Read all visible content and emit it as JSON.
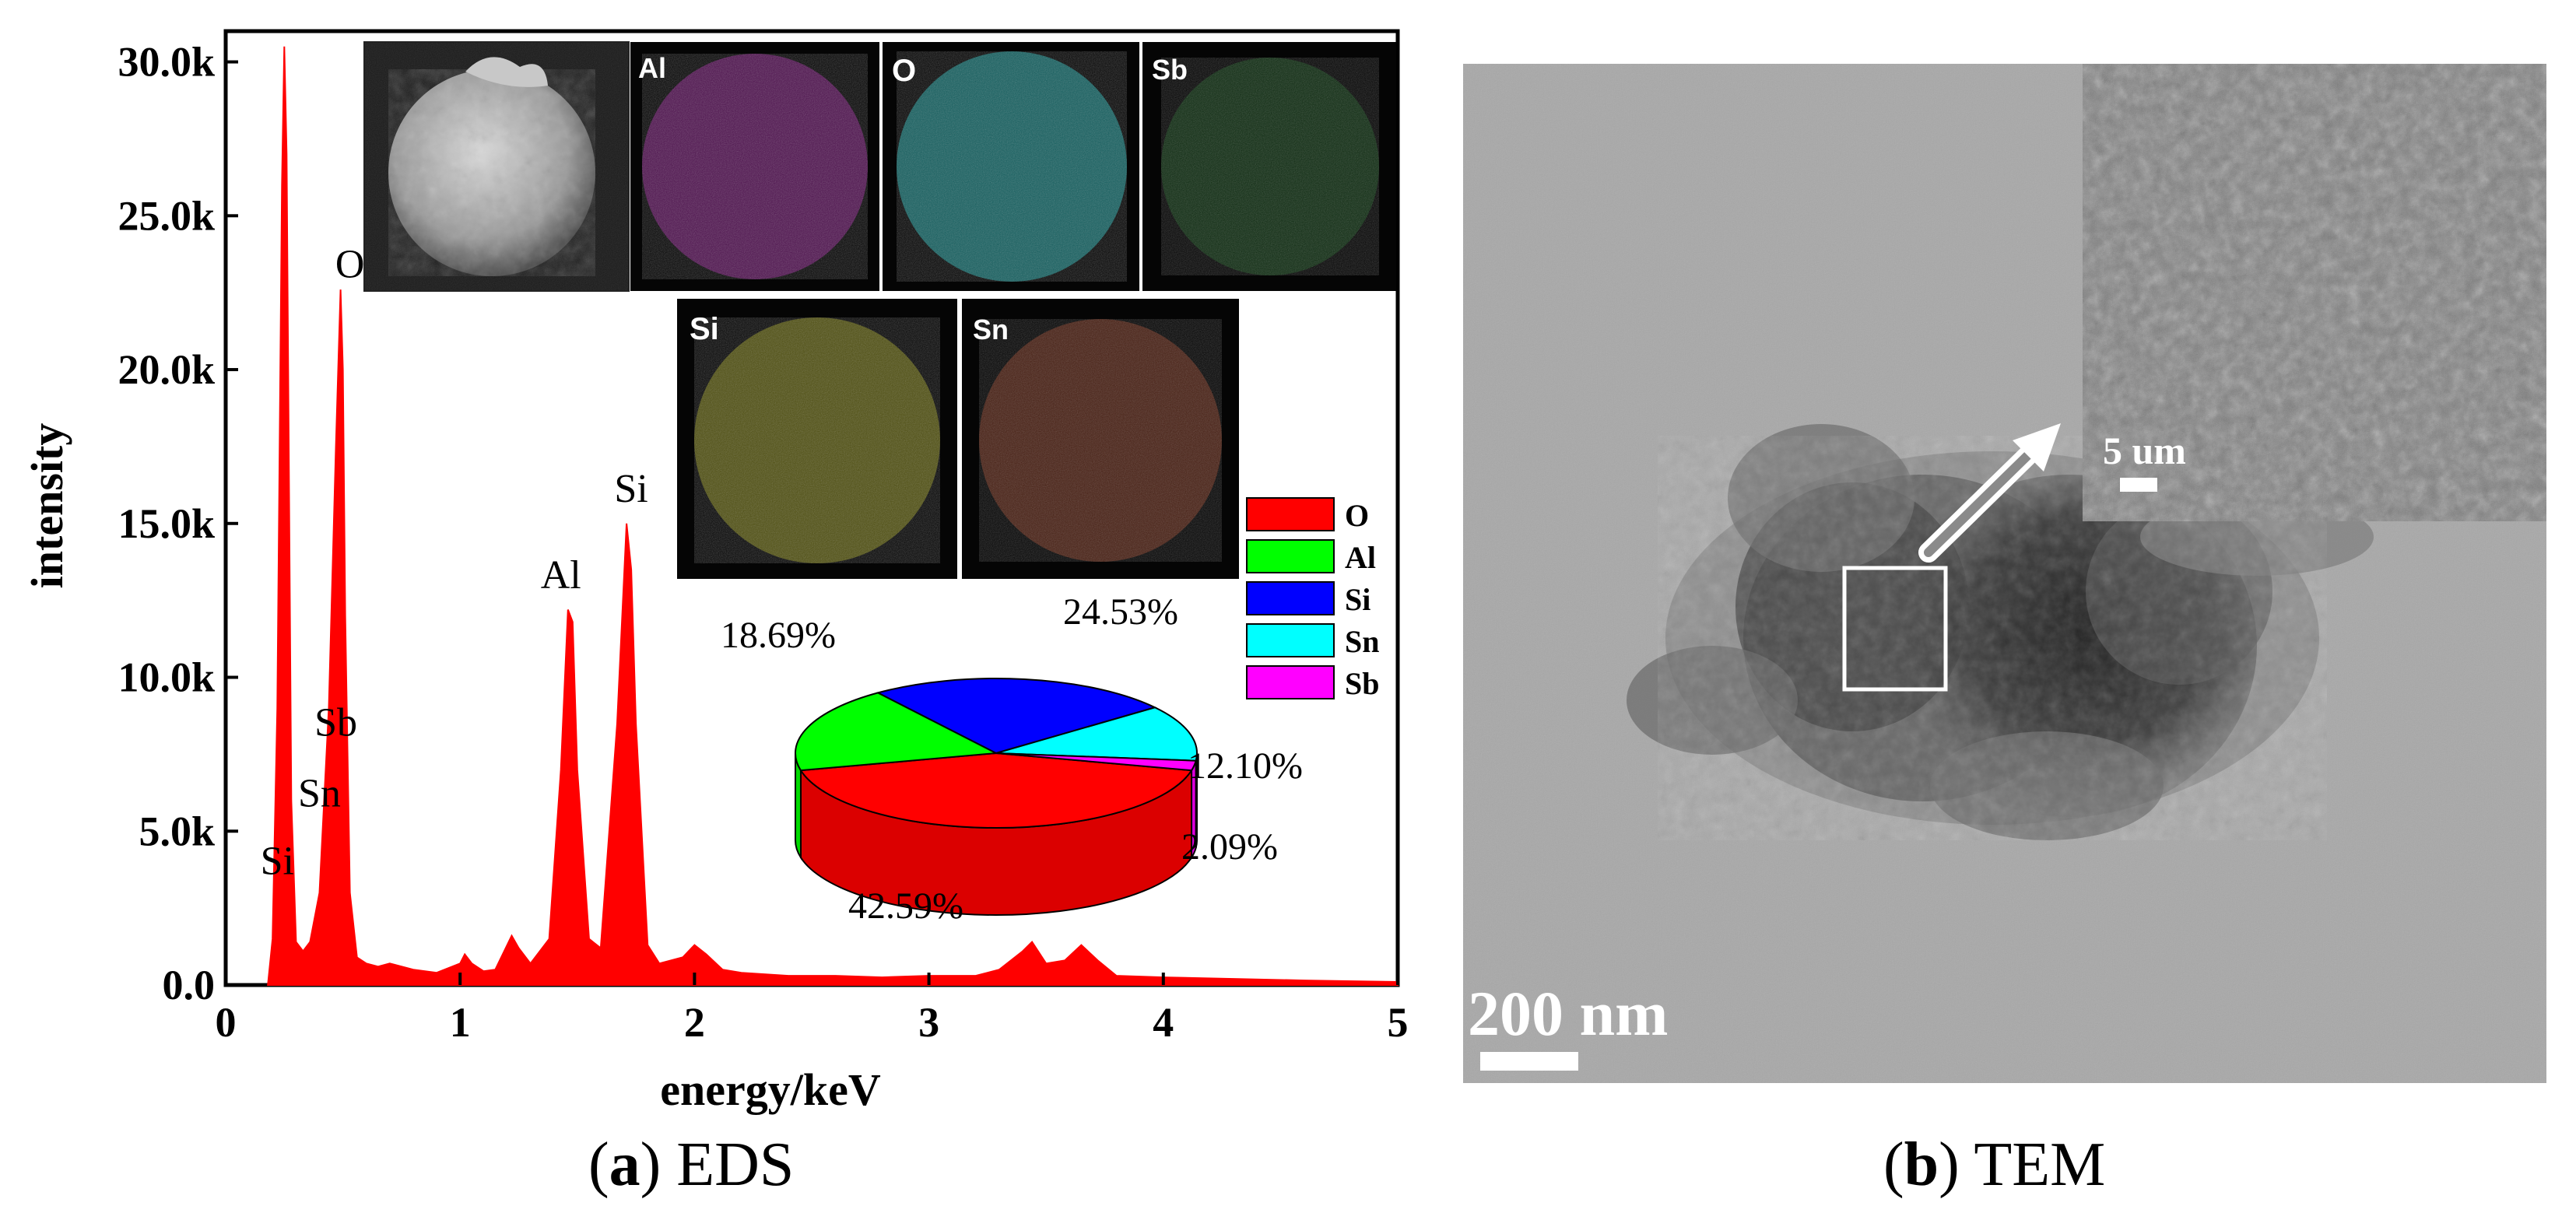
{
  "captions": {
    "a_letter": "a",
    "a_text": "EDS",
    "b_letter": "b",
    "b_text": "TEM"
  },
  "chart_data": [
    {
      "type": "line",
      "subtype": "area-spectrum",
      "xlabel": "energy/keV",
      "ylabel": "intensity",
      "xlim": [
        0,
        5
      ],
      "ylim": [
        0,
        30000
      ],
      "xticks": [
        "0",
        "1",
        "2",
        "3",
        "4",
        "5"
      ],
      "yticks": [
        "0.0",
        "5.0k",
        "10.0k",
        "15.0k",
        "20.0k",
        "25.0k",
        "30.0k"
      ],
      "ytick_values": [
        0,
        5000,
        10000,
        15000,
        20000,
        25000,
        30000
      ],
      "fill_color": "#ff0000",
      "grid": false,
      "series": [
        {
          "x": [
            0.18,
            0.2,
            0.22,
            0.24,
            0.25,
            0.26,
            0.28,
            0.3,
            0.33,
            0.36,
            0.4,
            0.44,
            0.47,
            0.49,
            0.5,
            0.51,
            0.53,
            0.56,
            0.6,
            0.65,
            0.7,
            0.8,
            0.9,
            1.0,
            1.02,
            1.05,
            1.1,
            1.15,
            1.22,
            1.25,
            1.3,
            1.38,
            1.43,
            1.46,
            1.48,
            1.5,
            1.55,
            1.6,
            1.67,
            1.71,
            1.73,
            1.75,
            1.8,
            1.85,
            1.95,
            2.0,
            2.05,
            2.12,
            2.2,
            2.4,
            2.6,
            2.8,
            3.0,
            3.2,
            3.3,
            3.4,
            3.44,
            3.5,
            3.58,
            3.65,
            3.72,
            3.8,
            4.0,
            4.3,
            4.6,
            5.0
          ],
          "y": [
            0,
            1500,
            9000,
            26000,
            30500,
            27000,
            6000,
            1400,
            1100,
            1400,
            3000,
            9000,
            17500,
            22600,
            20000,
            12000,
            3000,
            900,
            700,
            600,
            700,
            500,
            400,
            700,
            1000,
            700,
            450,
            500,
            1600,
            1200,
            700,
            1500,
            7000,
            12200,
            11800,
            7000,
            1500,
            1200,
            8500,
            15000,
            13500,
            8500,
            1300,
            700,
            900,
            1300,
            1000,
            500,
            400,
            300,
            300,
            250,
            300,
            300,
            500,
            1100,
            1400,
            700,
            800,
            1300,
            800,
            300,
            250,
            200,
            150,
            100
          ]
        }
      ],
      "peak_labels": [
        {
          "text": "Si",
          "x": 0.22,
          "y": 3600
        },
        {
          "text": "Sn",
          "x": 0.4,
          "y": 5800
        },
        {
          "text": "Sb",
          "x": 0.47,
          "y": 8100
        },
        {
          "text": "O",
          "x": 0.53,
          "y": 23000
        },
        {
          "text": "Al",
          "x": 1.43,
          "y": 12900
        },
        {
          "text": "Si",
          "x": 1.73,
          "y": 15700
        }
      ]
    },
    {
      "type": "pie",
      "style": "3d",
      "categories": [
        "O",
        "Al",
        "Si",
        "Sn",
        "Sb"
      ],
      "values": [
        42.59,
        18.69,
        24.53,
        12.1,
        2.09
      ],
      "labels": [
        "42.59%",
        "18.69%",
        "24.53%",
        "12.10%",
        "2.09%"
      ],
      "colors": [
        "#ff0000",
        "#00ff00",
        "#0000ff",
        "#00ffff",
        "#ff00ff"
      ],
      "legend_position": "right"
    }
  ],
  "inset_maps": {
    "labels": [
      "Al",
      "O",
      "Sb",
      "Si",
      "Sn"
    ],
    "colors": [
      "#e0e0e0",
      "#b020b0",
      "#20b0b0",
      "#207a30",
      "#b0b020",
      "#c05030"
    ]
  },
  "tem": {
    "scalebar_label": "200 nm",
    "inset_scalebar_label": "5 um"
  }
}
